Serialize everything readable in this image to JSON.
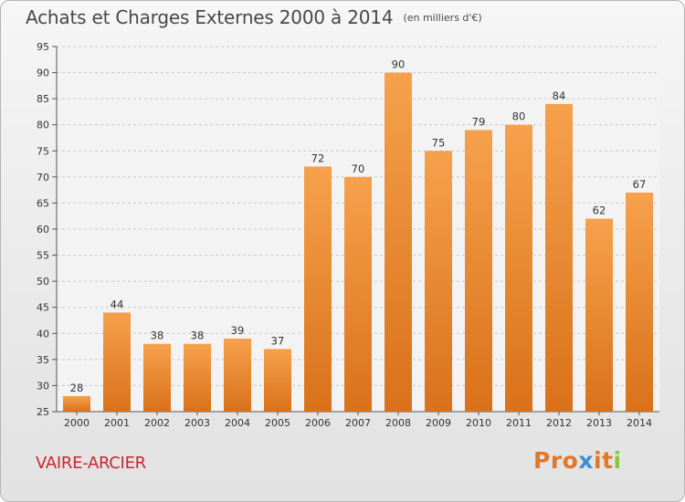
{
  "header": {
    "title": "Achats et Charges Externes 2000 à 2014",
    "subtitle": "(en milliers d'€)"
  },
  "footer": {
    "place": "VAIRE-ARCIER",
    "logo": "Proxiti"
  },
  "colors": {
    "bar_top": "#f6a14c",
    "bar_bottom": "#d9711a",
    "place_text": "#c8282f",
    "logo_letters": [
      "#e0772a",
      "#e0772a",
      "#e0772a",
      "#3d8fd4",
      "#e0772a",
      "#e0772a",
      "#8cc63f"
    ]
  },
  "chart_data": {
    "type": "bar",
    "categories": [
      "2000",
      "2001",
      "2002",
      "2003",
      "2004",
      "2005",
      "2006",
      "2007",
      "2008",
      "2009",
      "2010",
      "2011",
      "2012",
      "2013",
      "2014"
    ],
    "values": [
      28,
      44,
      38,
      38,
      39,
      37,
      72,
      70,
      90,
      75,
      79,
      80,
      84,
      62,
      67
    ],
    "title": "Achats et Charges Externes 2000 à 2014",
    "ylim": [
      25,
      95
    ],
    "yticks": [
      25,
      30,
      35,
      40,
      45,
      50,
      55,
      60,
      65,
      70,
      75,
      80,
      85,
      90,
      95
    ],
    "grid": "horizontal dashed",
    "legend": "none"
  }
}
